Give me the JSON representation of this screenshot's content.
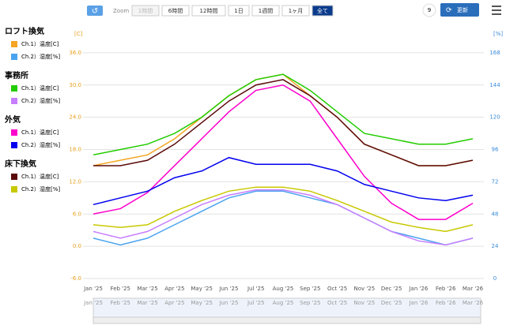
{
  "toolbar": {
    "zoom_label": "Zoom",
    "ranges": [
      {
        "label": "1時間",
        "state": "disabled"
      },
      {
        "label": "6時間",
        "state": "normal"
      },
      {
        "label": "12時間",
        "state": "normal"
      },
      {
        "label": "1日",
        "state": "normal"
      },
      {
        "label": "1週間",
        "state": "normal"
      },
      {
        "label": "1ヶ月",
        "state": "normal"
      },
      {
        "label": "全て",
        "state": "active"
      }
    ],
    "counter": "9",
    "update": "更新"
  },
  "chart_data": {
    "type": "line",
    "ylabel": "[C]",
    "y2label": "[%]",
    "categories": [
      "Jan '25",
      "Feb '25",
      "Mar '25",
      "Apr '25",
      "May '25",
      "Jun '25",
      "Jul '25",
      "Aug '25",
      "Sep '25",
      "Oct '25",
      "Nov '25",
      "Dec '25",
      "Jan '26",
      "Feb '26",
      "Mar '26"
    ],
    "ylim": [
      -6,
      42
    ],
    "yticks": [
      {
        "value": -6,
        "label": "-6.0"
      },
      {
        "value": 0,
        "label": "0.0"
      },
      {
        "value": 6,
        "label": "6.0"
      },
      {
        "value": 12,
        "label": "12.0"
      },
      {
        "value": 18,
        "label": "18.0"
      },
      {
        "value": 24,
        "label": "24.0"
      },
      {
        "value": 30,
        "label": "30.0"
      },
      {
        "value": 36,
        "label": "36.0"
      }
    ],
    "y2lim": [
      0,
      192
    ],
    "y2ticks": [
      0,
      24,
      48,
      72,
      96,
      120,
      144,
      168
    ],
    "grid": true,
    "series": [
      {
        "group": "ロフト換気",
        "name": "Ch.1）温度[C]",
        "color": "#f5a623",
        "values": [
          15,
          16,
          17,
          20,
          24,
          28,
          31,
          32,
          28,
          24,
          19,
          17,
          15,
          15,
          16
        ]
      },
      {
        "group": "ロフト換気",
        "name": "Ch.2）湿度[%]",
        "color": "#4aa3f0",
        "axis": "y2",
        "values": [
          30,
          25,
          30,
          40,
          50,
          60,
          65,
          65,
          60,
          55,
          45,
          35,
          30,
          25,
          30
        ]
      },
      {
        "group": "事務所",
        "name": "Ch.1）温度[C]",
        "color": "#22cc00",
        "values": [
          17,
          18,
          19,
          21,
          24,
          28,
          31,
          32,
          29,
          25,
          21,
          20,
          19,
          19,
          20
        ]
      },
      {
        "group": "事務所",
        "name": "Ch.2）湿度[%]",
        "color": "#c77dff",
        "axis": "y2",
        "values": [
          35,
          30,
          35,
          45,
          55,
          62,
          66,
          66,
          62,
          55,
          45,
          35,
          28,
          25,
          30
        ]
      },
      {
        "group": "外気",
        "name": "Ch.1）温度[C]",
        "color": "#ff00cc",
        "values": [
          6,
          7,
          10,
          15,
          20,
          25,
          29,
          30,
          27,
          20,
          13,
          8,
          5,
          5,
          8
        ]
      },
      {
        "group": "外気",
        "name": "Ch.2）湿度[%]",
        "color": "#0000ee",
        "axis": "y2",
        "values": [
          55,
          60,
          65,
          75,
          80,
          90,
          85,
          85,
          85,
          80,
          70,
          65,
          60,
          58,
          62
        ]
      },
      {
        "group": "床下換気",
        "name": "Ch.1）温度[C]",
        "color": "#5a0a0a",
        "values": [
          15,
          15,
          16,
          19,
          23,
          27,
          30,
          31,
          28,
          24,
          19,
          17,
          15,
          15,
          16
        ]
      },
      {
        "group": "床下換気",
        "name": "Ch.2）湿度[%]",
        "color": "#c8c800",
        "axis": "y2",
        "values": [
          40,
          38,
          40,
          50,
          58,
          65,
          68,
          68,
          65,
          58,
          50,
          42,
          38,
          35,
          40
        ]
      }
    ]
  }
}
